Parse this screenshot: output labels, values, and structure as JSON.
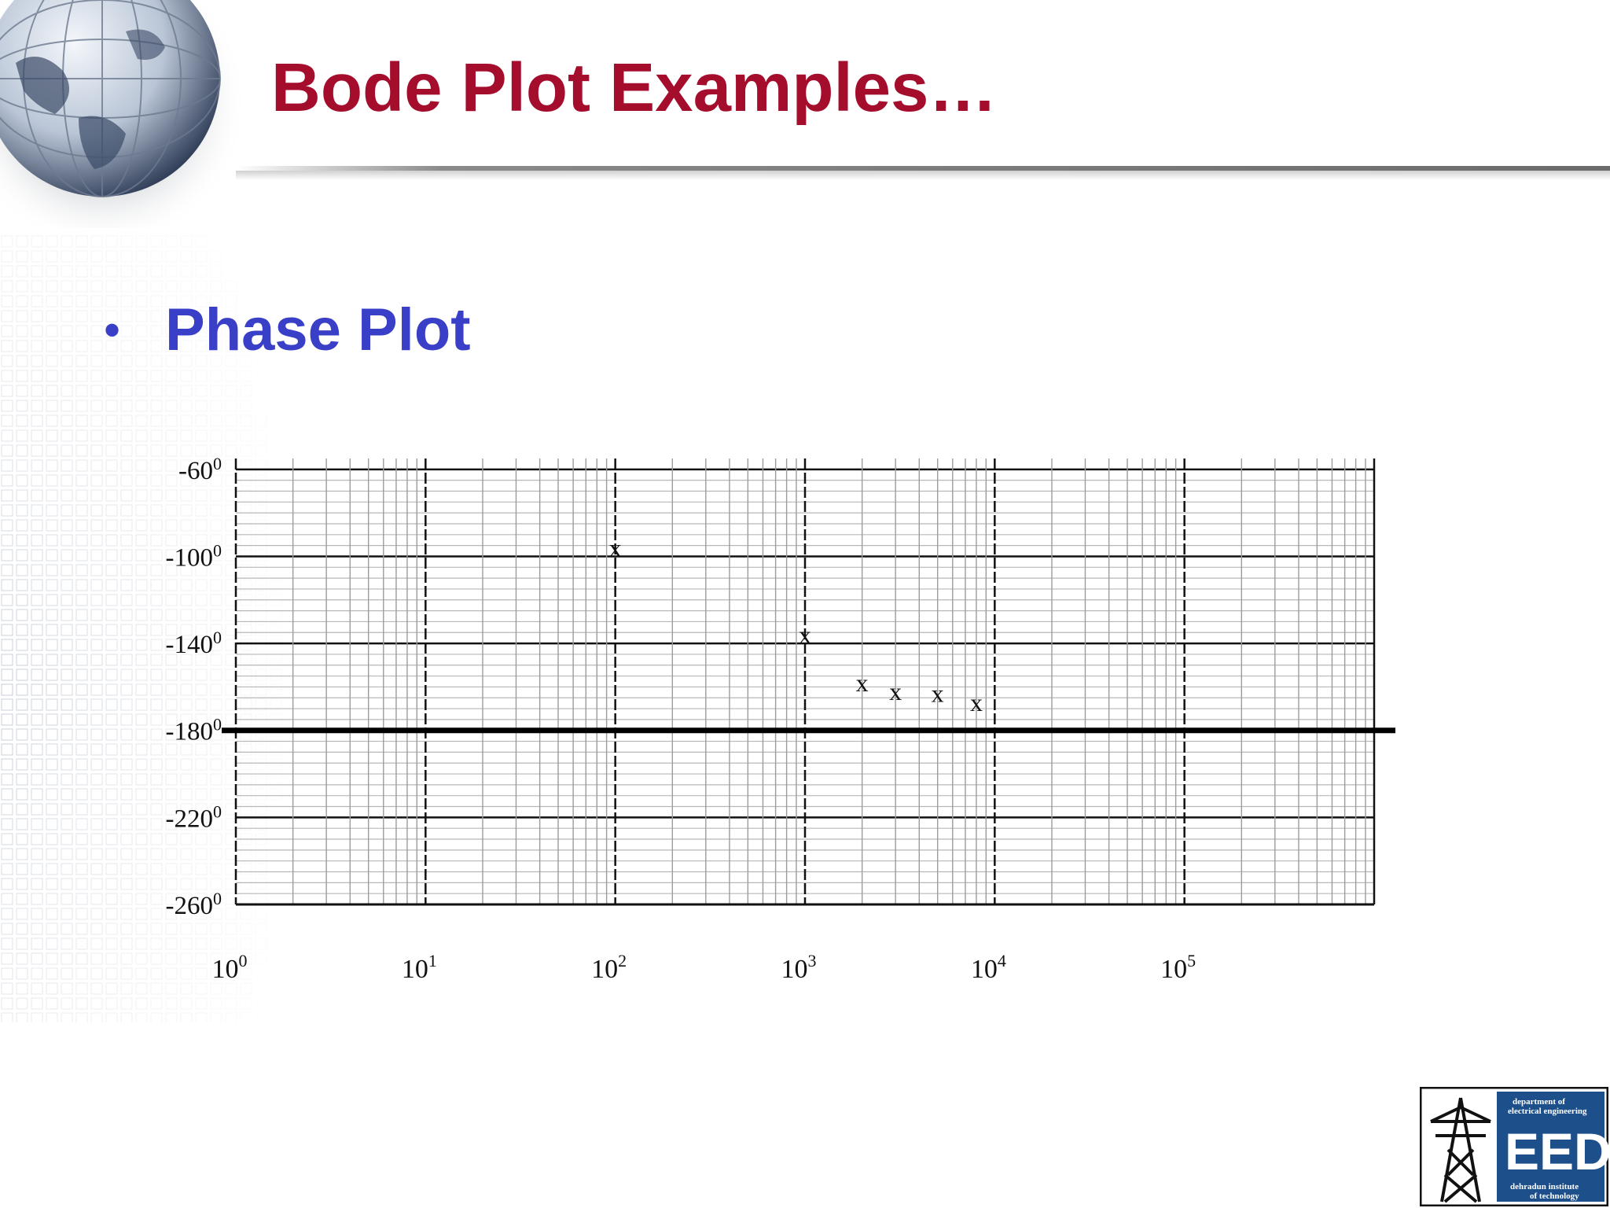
{
  "slide": {
    "title": "Bode Plot Examples…",
    "bullet": "Phase Plot",
    "bullet_symbol": "•",
    "title_color": "#a50d2d",
    "bullet_color": "#3a3fc8"
  },
  "logo": {
    "line1": "department of",
    "line2": "electrical engineering",
    "acronym": "EED",
    "line3": "dehradun institute",
    "line4": "of technology",
    "bg_color": "#1d4f8a"
  },
  "chart_data": {
    "type": "scatter",
    "x_scale": "log",
    "xlim": [
      1,
      1000000
    ],
    "ylim": [
      -260,
      -55
    ],
    "x_ticks": [
      {
        "base": "10",
        "exp": "0"
      },
      {
        "base": "10",
        "exp": "1"
      },
      {
        "base": "10",
        "exp": "2"
      },
      {
        "base": "10",
        "exp": "3"
      },
      {
        "base": "10",
        "exp": "4"
      },
      {
        "base": "10",
        "exp": "5"
      }
    ],
    "y_ticks": [
      {
        "value": -60,
        "label": "-60",
        "sup": "0"
      },
      {
        "value": -100,
        "label": "-100",
        "sup": "0"
      },
      {
        "value": -140,
        "label": "-140",
        "sup": "0"
      },
      {
        "value": -180,
        "label": "-180",
        "sup": "0"
      },
      {
        "value": -220,
        "label": "-220",
        "sup": "0"
      },
      {
        "value": -260,
        "label": "-260",
        "sup": "0"
      }
    ],
    "reference_line_y": -180,
    "marker": "x",
    "points": [
      {
        "x": 100,
        "y": -96
      },
      {
        "x": 1000,
        "y": -136
      },
      {
        "x": 2000,
        "y": -158
      },
      {
        "x": 3000,
        "y": -162
      },
      {
        "x": 5000,
        "y": -163
      },
      {
        "x": 8000,
        "y": -167
      }
    ],
    "grid": true
  }
}
